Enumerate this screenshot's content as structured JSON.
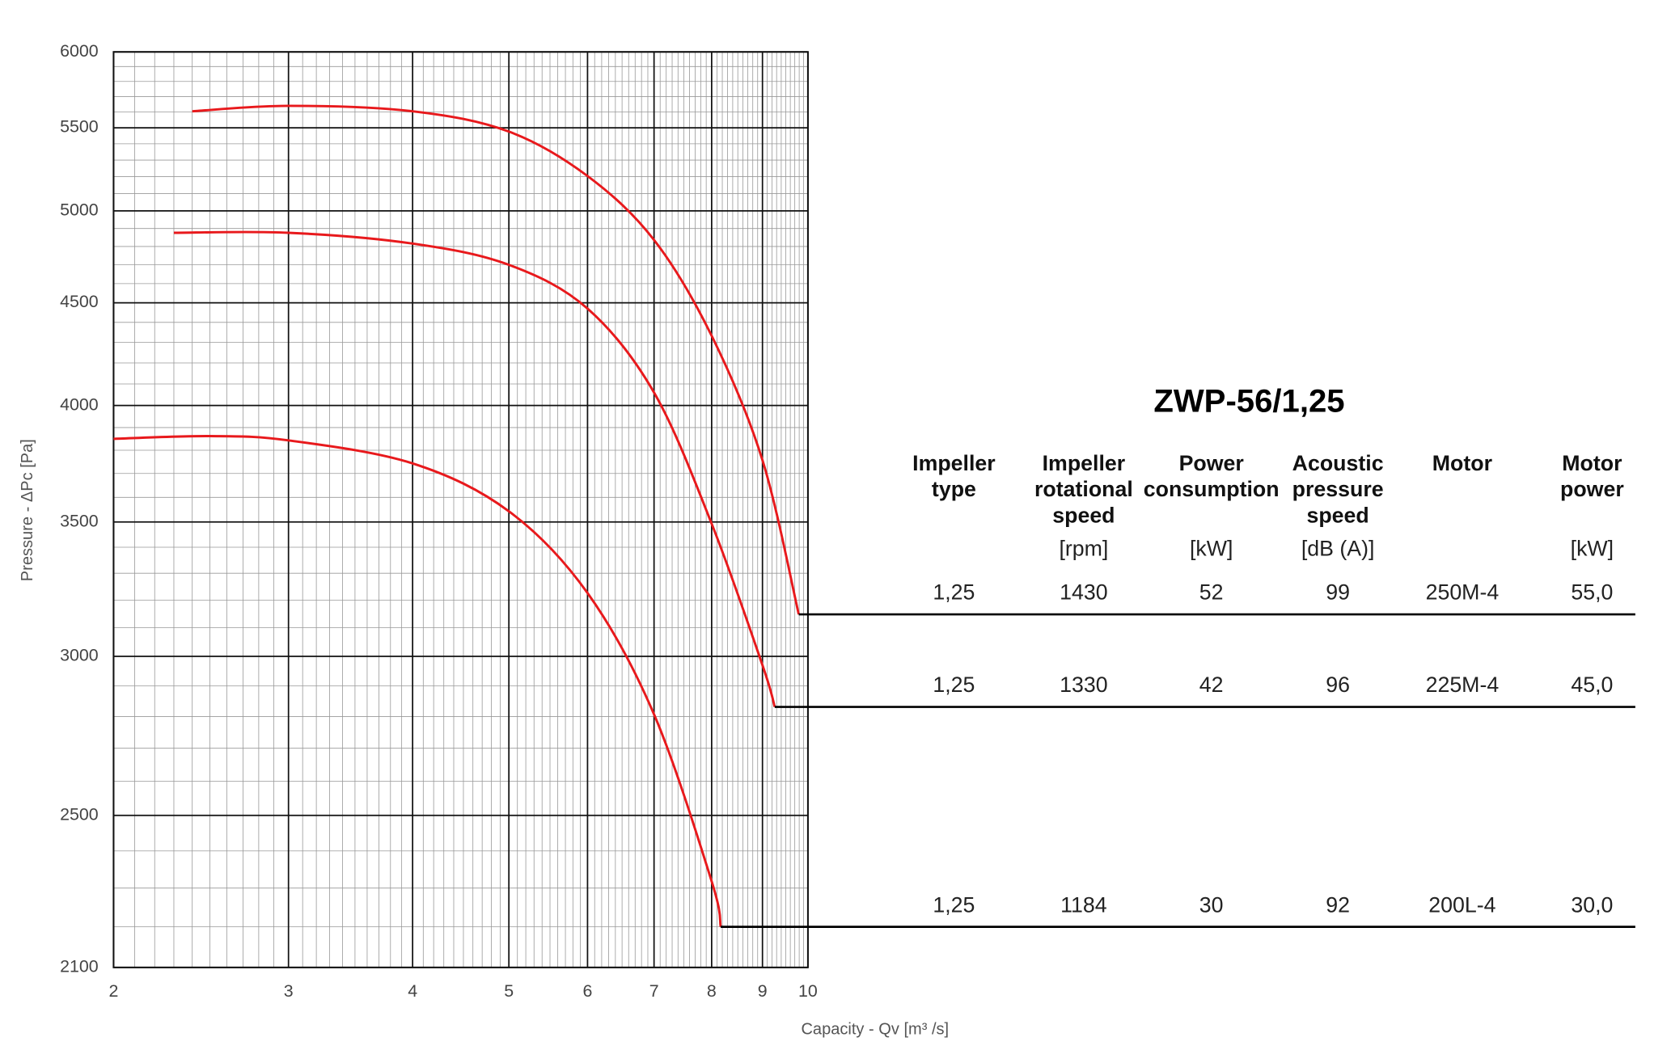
{
  "chart_data": {
    "type": "line",
    "xlabel": "Capacity - Qv [m³ /s]",
    "ylabel": "Pressure - ΔPc [Pa]",
    "xscale": "log",
    "yscale": "log",
    "xlim": [
      2,
      10
    ],
    "ylim": [
      2100,
      6000
    ],
    "xticks": [
      2,
      3,
      4,
      5,
      6,
      7,
      8,
      9,
      10
    ],
    "yticks": [
      2100,
      2500,
      3000,
      3500,
      4000,
      4500,
      5000,
      5500,
      6000
    ],
    "grid": true,
    "series": [
      {
        "color": "#e8191c",
        "x": [
          2.4,
          3,
          4,
          5,
          6,
          7,
          8,
          9,
          9.79
        ],
        "values": [
          5605,
          5640,
          5605,
          5476,
          5204,
          4836,
          4333,
          3757,
          3148
        ]
      },
      {
        "color": "#e8191c",
        "x": [
          2.3,
          3,
          4,
          5,
          6,
          7,
          8,
          9,
          9.26
        ],
        "values": [
          4876,
          4876,
          4816,
          4700,
          4470,
          4060,
          3493,
          2970,
          2831
        ]
      },
      {
        "color": "#e8191c",
        "x": [
          2,
          2.5,
          3,
          4,
          5,
          6,
          7,
          8,
          8.17
        ],
        "values": [
          3850,
          3862,
          3843,
          3743,
          3543,
          3226,
          2807,
          2318,
          2200
        ]
      }
    ]
  },
  "table": {
    "title": "ZWP-56/1,25",
    "columns": [
      {
        "lines": [
          "Impeller",
          "type"
        ]
      },
      {
        "lines": [
          "Impeller",
          "rotational",
          "speed"
        ],
        "unit": "[rpm]"
      },
      {
        "lines": [
          "Power",
          "consumption"
        ],
        "unit": "[kW]"
      },
      {
        "lines": [
          "Acoustic",
          "pressure",
          "speed"
        ],
        "unit": "[dB (A)]"
      },
      {
        "lines": [
          "Motor"
        ]
      },
      {
        "lines": [
          "Motor",
          "power"
        ],
        "unit": "[kW]"
      }
    ],
    "rows": [
      [
        "1,25",
        "1430",
        "52",
        "99",
        "250M-4",
        "55,0"
      ],
      [
        "1,25",
        "1330",
        "42",
        "96",
        "225M-4",
        "45,0"
      ],
      [
        "1,25",
        "1184",
        "30",
        "92",
        "200L-4",
        "30,0"
      ]
    ]
  }
}
